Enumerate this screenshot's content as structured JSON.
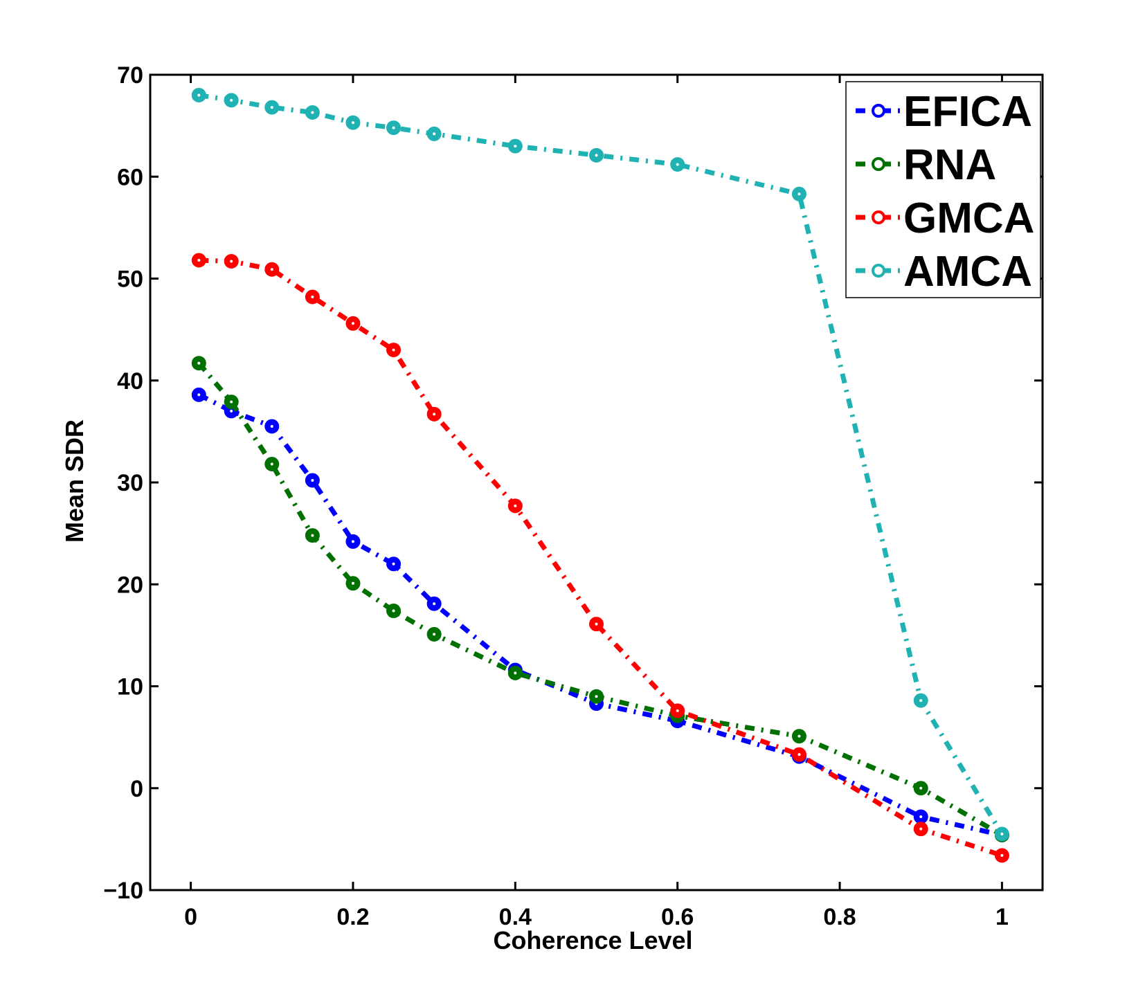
{
  "chart_data": {
    "type": "line",
    "title": "",
    "xlabel": "Coherence Level",
    "ylabel": "Mean SDR",
    "xlim": [
      -0.05,
      1.05
    ],
    "ylim": [
      -10,
      70
    ],
    "xticks": [
      0,
      0.2,
      0.4,
      0.6,
      0.8,
      1
    ],
    "xtick_labels": [
      "0",
      "0.2",
      "0.4",
      "0.6",
      "0.8",
      "1"
    ],
    "yticks": [
      -10,
      0,
      10,
      20,
      30,
      40,
      50,
      60,
      70
    ],
    "ytick_labels": [
      "−10",
      "0",
      "10",
      "20",
      "30",
      "40",
      "50",
      "60",
      "70"
    ],
    "grid": false,
    "legend_position": "top-right",
    "x": [
      0.01,
      0.05,
      0.1,
      0.15,
      0.2,
      0.25,
      0.3,
      0.4,
      0.5,
      0.6,
      0.75,
      0.9,
      1.0
    ],
    "series": [
      {
        "name": "EFICA",
        "color": "#0000ff",
        "values": [
          38.6,
          37.0,
          35.5,
          30.2,
          24.2,
          22.0,
          18.1,
          11.6,
          8.3,
          6.6,
          3.1,
          -2.8,
          -4.6
        ]
      },
      {
        "name": "RNA",
        "color": "#007000",
        "values": [
          41.7,
          37.9,
          31.8,
          24.8,
          20.1,
          17.4,
          15.1,
          11.3,
          9.0,
          7.1,
          5.1,
          0.0,
          -4.6
        ]
      },
      {
        "name": "GMCA",
        "color": "#ff0000",
        "values": [
          51.8,
          51.7,
          50.9,
          48.2,
          45.6,
          43.0,
          36.7,
          27.7,
          16.1,
          7.6,
          3.3,
          -4.0,
          -6.6
        ]
      },
      {
        "name": "AMCA",
        "color": "#20b2b2",
        "values": [
          68.0,
          67.5,
          66.8,
          66.3,
          65.3,
          64.8,
          64.2,
          63.0,
          62.1,
          61.2,
          58.3,
          8.6,
          -4.5
        ]
      }
    ]
  }
}
